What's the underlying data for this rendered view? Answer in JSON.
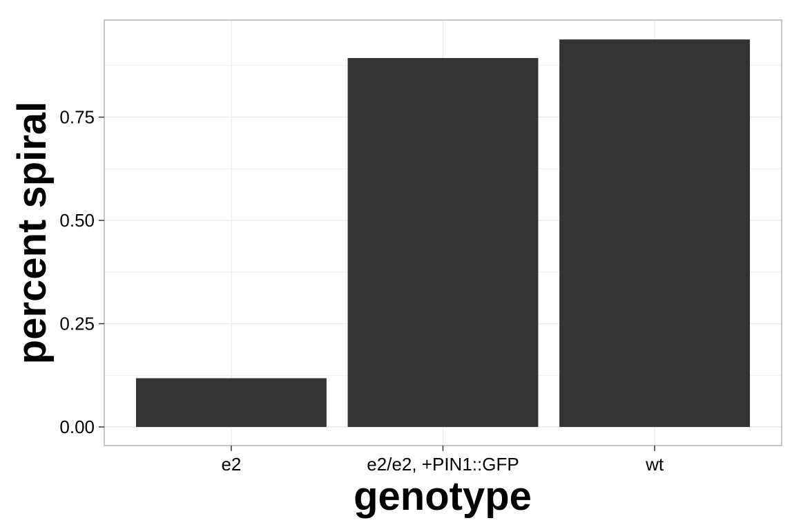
{
  "chart_data": {
    "type": "bar",
    "title": "",
    "xlabel": "genotype",
    "ylabel": "percent spiral",
    "categories": [
      "e2",
      "e2/e2, +PIN1::GFP",
      "wt"
    ],
    "values": [
      0.118,
      0.893,
      0.938
    ],
    "yticks": [
      0,
      0.25,
      0.5,
      0.75
    ],
    "ytick_labels": [
      "0.00",
      "0.25",
      "0.50",
      "0.75"
    ],
    "ylim": [
      -0.045,
      0.985
    ],
    "grid": true,
    "legend": "none",
    "bar_color": "#333333",
    "grid_color": "#ebebeb",
    "panel_border_color": "#b3b3b3"
  }
}
